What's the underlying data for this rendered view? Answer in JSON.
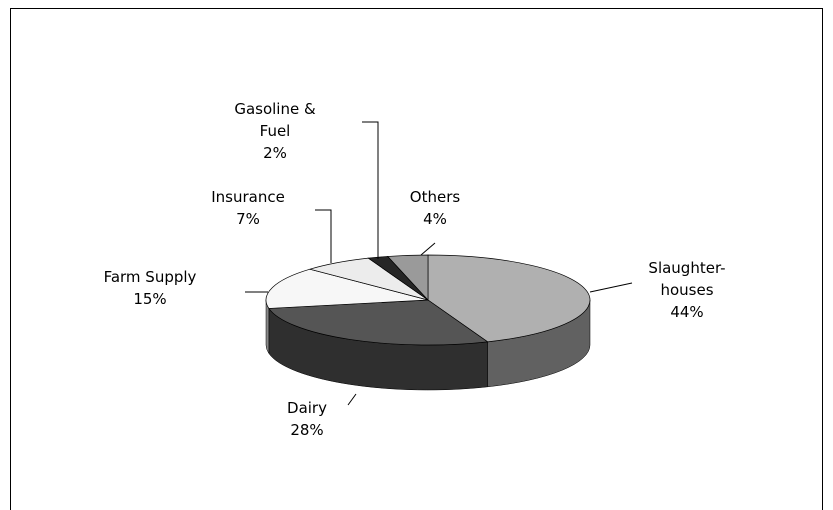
{
  "chart_data": {
    "type": "pie3d",
    "categories": [
      "Slaughter-houses",
      "Dairy",
      "Farm Supply",
      "Insurance",
      "Gasoline & Fuel",
      "Others"
    ],
    "values": [
      44,
      28,
      15,
      7,
      2,
      4
    ],
    "value_labels": [
      "44%",
      "28%",
      "15%",
      "7%",
      "2%",
      "4%"
    ],
    "colors": [
      "#b0b0b0",
      "#555555",
      "#f7f7f7",
      "#ececec",
      "#262626",
      "#9a9a9a"
    ]
  }
}
